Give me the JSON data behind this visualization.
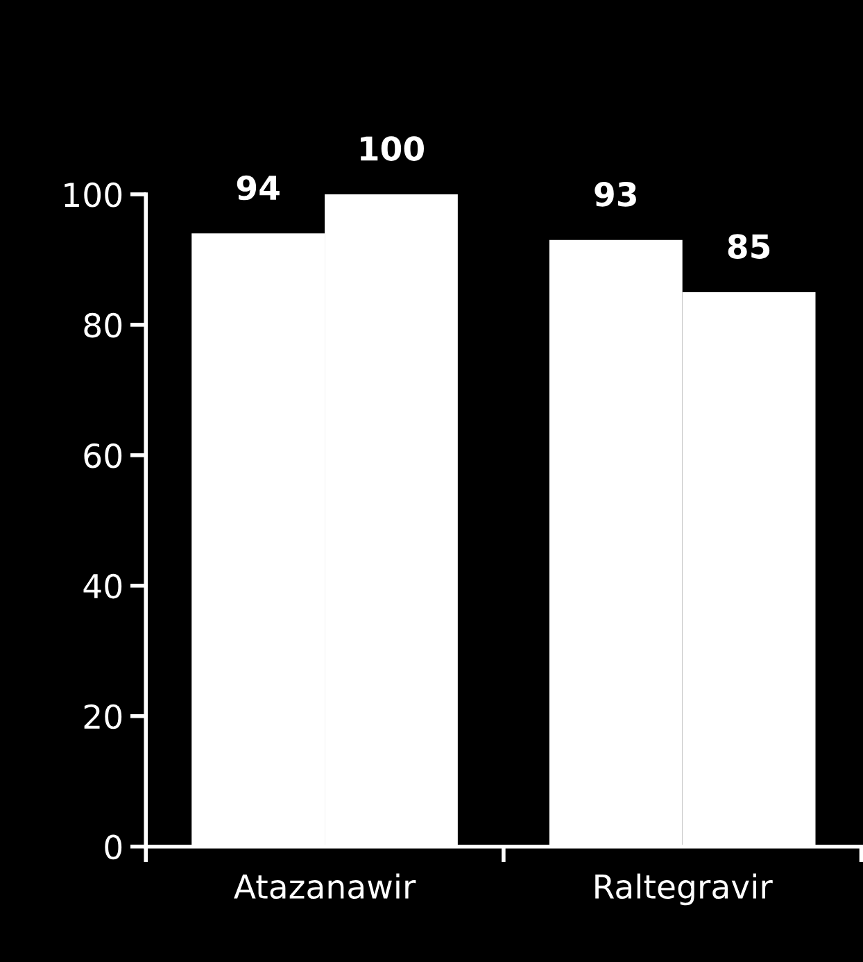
{
  "chart_data": {
    "type": "bar",
    "categories": [
      "Atazanawir",
      "Raltegravir"
    ],
    "series": [
      {
        "color": "#ffffff",
        "values": [
          94,
          93
        ]
      },
      {
        "color": "#ffffff",
        "values": [
          100,
          85
        ]
      }
    ],
    "ylim": [
      0,
      100
    ],
    "yticks": [
      0,
      20,
      40,
      60,
      80,
      100
    ],
    "grid": false,
    "legend": false,
    "data_labels": true
  }
}
